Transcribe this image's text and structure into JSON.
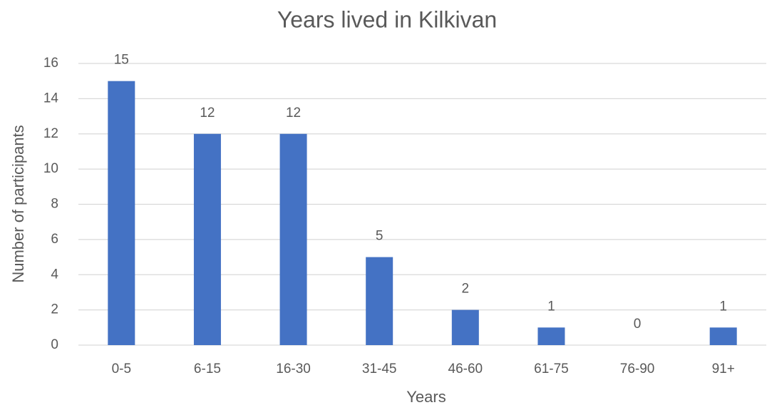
{
  "chart_data": {
    "type": "bar",
    "title": "Years lived in Kilkivan",
    "x_label": "Years",
    "y_label": "Number of participants",
    "categories": [
      "0-5",
      "6-15",
      "16-30",
      "31-45",
      "46-60",
      "61-75",
      "76-90",
      "91+"
    ],
    "values": [
      15,
      12,
      12,
      5,
      2,
      1,
      0,
      1
    ],
    "color": "#4472c4",
    "ylim": [
      0,
      16
    ],
    "yticks": [
      0,
      2,
      4,
      6,
      8,
      10,
      12,
      14,
      16
    ],
    "grid": true
  }
}
